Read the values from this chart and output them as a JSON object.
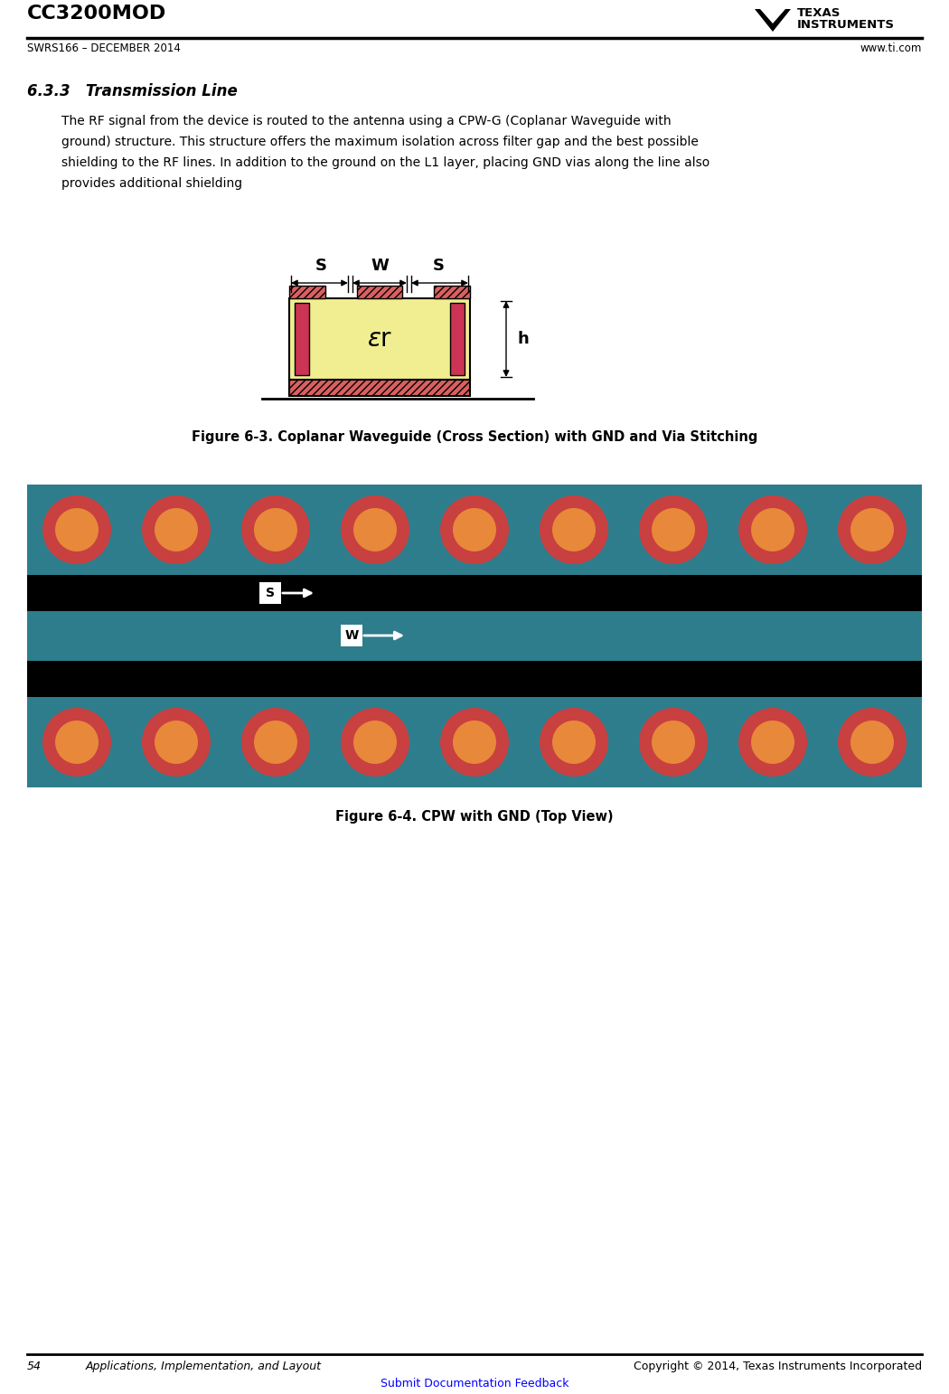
{
  "page_width": 10.5,
  "page_height": 15.42,
  "bg_color": "#ffffff",
  "header_title": "CC3200MOD",
  "header_sub": "SWRS166 – DECEMBER 2014",
  "header_right": "www.ti.com",
  "footer_left_num": "54",
  "footer_left_text": "Applications, Implementation, and Layout",
  "footer_right": "Copyright © 2014, Texas Instruments Incorporated",
  "footer_link": "Submit Documentation Feedback",
  "section_title": "6.3.3   Transmission Line",
  "body_line1": "The RF signal from the device is routed to the antenna using a CPW-G (Coplanar Waveguide with",
  "body_line2": "ground) structure. This structure offers the maximum isolation across filter gap and the best possible",
  "body_line3": "shielding to the RF lines. In addition to the ground on the L1 layer, placing GND vias along the line also",
  "body_line4": "provides additional shielding",
  "fig3_caption": "Figure 6-3. Coplanar Waveguide (Cross Section) with GND and Via Stitching",
  "fig4_caption": "Figure 6-4. CPW with GND (Top View)",
  "teal_color": "#2e7d8c",
  "black_strip": "#000000",
  "red_outer": "#c94040",
  "red_inner": "#e8883a",
  "yellow_pcb": "#f0ee90",
  "pink_pad_color": "#d96060",
  "red_via_color": "#cc3355",
  "hatch_color": "#cc3355"
}
